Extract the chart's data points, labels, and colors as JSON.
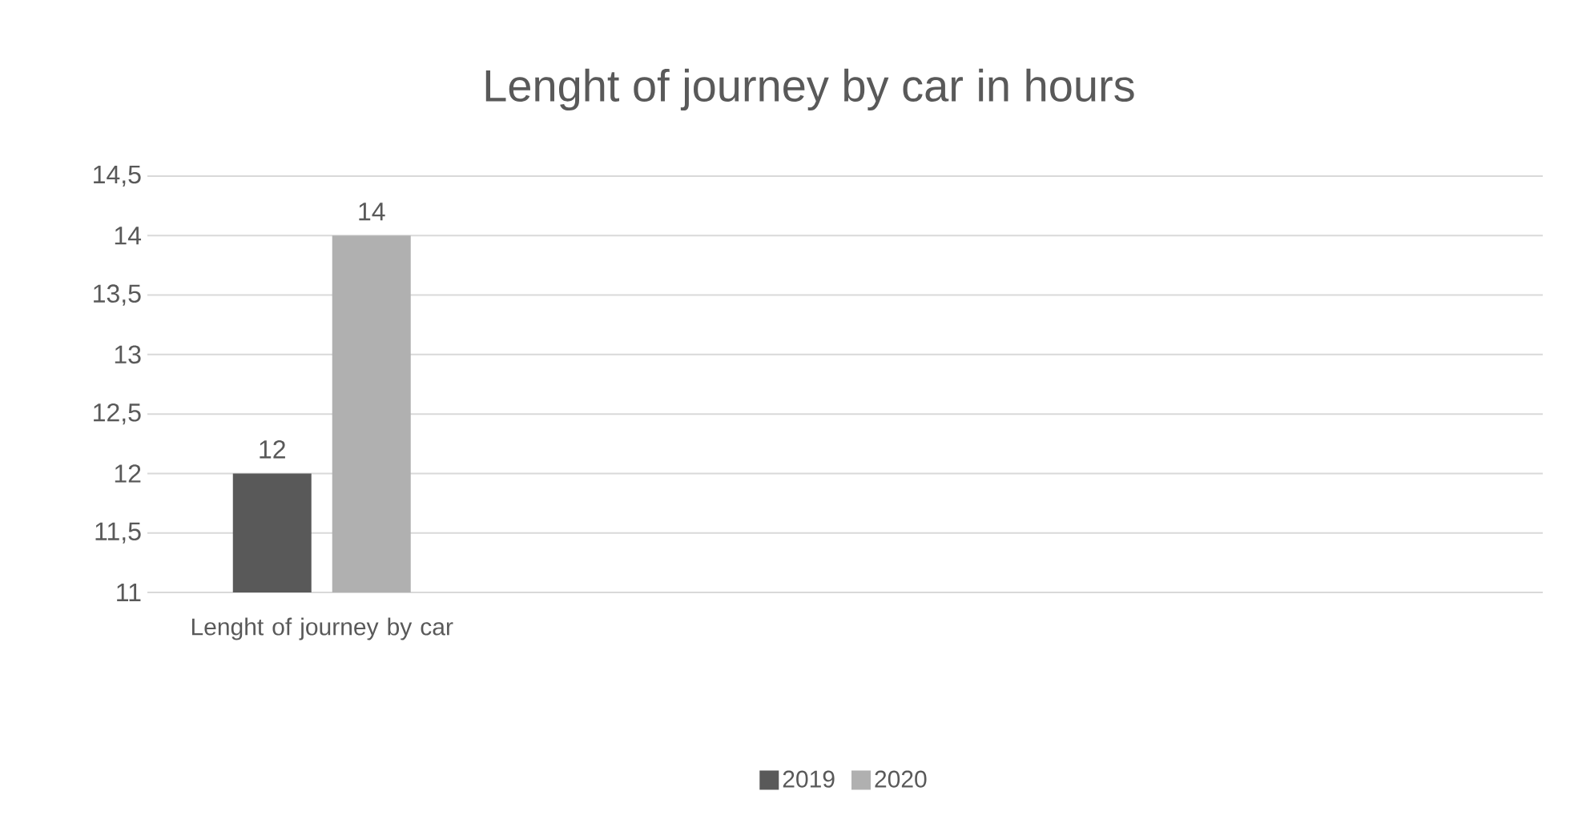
{
  "chart_data": {
    "type": "bar",
    "title": "Lenght of journey by car in hours",
    "categories": [
      "Lenght of journey by car",
      null,
      null,
      null
    ],
    "series": [
      {
        "name": "2019",
        "color": "#595959",
        "values": [
          12,
          null,
          null,
          null
        ]
      },
      {
        "name": "2020",
        "color": "#b0b0b0",
        "values": [
          14,
          null,
          null,
          null
        ]
      }
    ],
    "ylim": [
      11,
      14.5
    ],
    "yticks": [
      {
        "value": 11,
        "label": "11"
      },
      {
        "value": 11.5,
        "label": "11,5"
      },
      {
        "value": 12,
        "label": "12"
      },
      {
        "value": 12.5,
        "label": "12,5"
      },
      {
        "value": 13,
        "label": "13"
      },
      {
        "value": 13.5,
        "label": "13,5"
      },
      {
        "value": 14,
        "label": "14"
      },
      {
        "value": 14.5,
        "label": "14,5"
      }
    ],
    "grid": "y",
    "data_labels": true,
    "legend": "bottom"
  }
}
